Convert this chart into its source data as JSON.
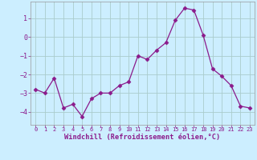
{
  "x": [
    0,
    1,
    2,
    3,
    4,
    5,
    6,
    7,
    8,
    9,
    10,
    11,
    12,
    13,
    14,
    15,
    16,
    17,
    18,
    19,
    20,
    21,
    22,
    23
  ],
  "y": [
    -2.8,
    -3.0,
    -2.2,
    -3.8,
    -3.6,
    -4.25,
    -3.3,
    -3.0,
    -3.0,
    -2.6,
    -2.4,
    -1.0,
    -1.2,
    -0.7,
    -0.3,
    0.9,
    1.55,
    1.45,
    0.1,
    -1.7,
    -2.1,
    -2.6,
    -3.7,
    -3.8
  ],
  "line_color": "#8b1a8b",
  "marker": "D",
  "marker_size": 2.5,
  "bg_color": "#cceeff",
  "grid_color": "#aacccc",
  "xlabel": "Windchill (Refroidissement éolien,°C)",
  "xlabel_color": "#8b1a8b",
  "tick_color": "#8b1a8b",
  "ylim": [
    -4.7,
    1.9
  ],
  "yticks": [
    -4,
    -3,
    -2,
    -1,
    0,
    1
  ],
  "xlim": [
    -0.5,
    23.5
  ],
  "xticks": [
    0,
    1,
    2,
    3,
    4,
    5,
    6,
    7,
    8,
    9,
    10,
    11,
    12,
    13,
    14,
    15,
    16,
    17,
    18,
    19,
    20,
    21,
    22,
    23
  ],
  "xtick_labels": [
    "0",
    "1",
    "2",
    "3",
    "4",
    "5",
    "6",
    "7",
    "8",
    "9",
    "10",
    "11",
    "12",
    "13",
    "14",
    "15",
    "16",
    "17",
    "18",
    "19",
    "20",
    "21",
    "22",
    "23"
  ]
}
